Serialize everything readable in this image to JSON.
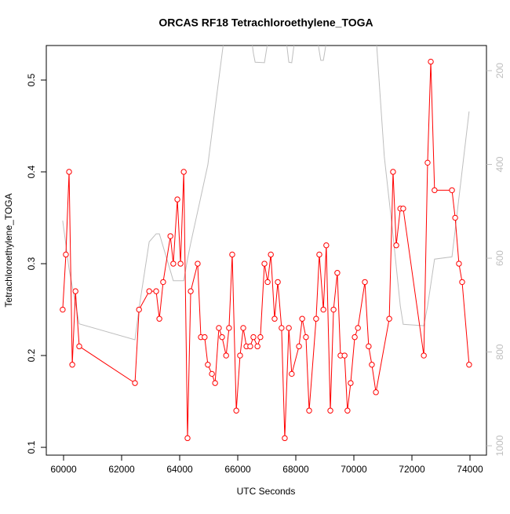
{
  "chart_data": {
    "type": "line",
    "title": "ORCAS RF18 Tetrachloroethylene_TOGA",
    "x_label": "UTC Seconds",
    "y_label": "Tetrachloroethylene_TOGA",
    "xlim": [
      59405,
      74568
    ],
    "xticks": [
      60000,
      62000,
      64000,
      66000,
      68000,
      70000,
      72000,
      74000
    ],
    "ylim": [
      0.0915,
      0.5376
    ],
    "yticks": [
      0.1,
      0.2,
      0.3,
      0.4,
      0.5
    ],
    "y2lim": [
      1020,
      146.4
    ],
    "y2ticks": [
      200,
      400,
      600,
      800,
      1000
    ],
    "series": [
      {
        "color": "#ff0000",
        "markers": true,
        "x": [
          59970,
          60080,
          60190,
          60300,
          60410,
          60540,
          62460,
          62600,
          62950,
          63190,
          63300,
          63430,
          63680,
          63780,
          63920,
          64030,
          64140,
          64270,
          64380,
          64620,
          64730,
          64860,
          64970,
          65110,
          65220,
          65350,
          65460,
          65600,
          65700,
          65810,
          65950,
          66080,
          66190,
          66300,
          66430,
          66540,
          66680,
          66780,
          66920,
          67030,
          67140,
          67270,
          67380,
          67510,
          67620,
          67760,
          67860,
          68110,
          68220,
          68350,
          68460,
          68700,
          68810,
          68950,
          69050,
          69190,
          69300,
          69430,
          69540,
          69680,
          69780,
          69890,
          70030,
          70140,
          70380,
          70510,
          70620,
          70760,
          71220,
          71350,
          71460,
          71600,
          71700,
          72410,
          72540,
          72650,
          72780,
          73380,
          73490,
          73620,
          73730,
          73970
        ],
        "values": [
          0.25,
          0.31,
          0.4,
          0.19,
          0.27,
          0.21,
          0.17,
          0.25,
          0.27,
          0.27,
          0.24,
          0.28,
          0.33,
          0.3,
          0.37,
          0.3,
          0.4,
          0.11,
          0.27,
          0.3,
          0.22,
          0.22,
          0.19,
          0.18,
          0.17,
          0.23,
          0.22,
          0.2,
          0.23,
          0.31,
          0.14,
          0.2,
          0.23,
          0.21,
          0.21,
          0.22,
          0.21,
          0.22,
          0.3,
          0.28,
          0.31,
          0.24,
          0.28,
          0.23,
          0.11,
          0.23,
          0.18,
          0.21,
          0.24,
          0.22,
          0.14,
          0.24,
          0.31,
          0.25,
          0.32,
          0.14,
          0.25,
          0.29,
          0.2,
          0.2,
          0.14,
          0.17,
          0.22,
          0.23,
          0.28,
          0.21,
          0.19,
          0.16,
          0.24,
          0.4,
          0.32,
          0.36,
          0.36,
          0.2,
          0.41,
          0.52,
          0.38,
          0.38,
          0.35,
          0.3,
          0.28,
          0.19
        ]
      },
      {
        "color": "#bebebe",
        "axis": "y2",
        "markers": false,
        "x": [
          59970,
          60190,
          60540,
          62460,
          62600,
          62950,
          63190,
          63300,
          63680,
          63780,
          64030,
          64140,
          64270,
          64380,
          64970,
          65510,
          66490,
          66540,
          66600,
          66920,
          67030,
          67680,
          67760,
          67860,
          67950,
          68760,
          68860,
          68950,
          69050,
          70780,
          71050,
          71350,
          71600,
          71700,
          72410,
          72540,
          72780,
          73380,
          73970
        ],
        "values": [
          520,
          623,
          740,
          774,
          707,
          565,
          548,
          548,
          627,
          648,
          648,
          648,
          602,
          568,
          401,
          140,
          140,
          163,
          182,
          183,
          140,
          140,
          182,
          183,
          140,
          140,
          178,
          178,
          140,
          140,
          384,
          551,
          702,
          741,
          744,
          702,
          602,
          597,
          287
        ]
      }
    ]
  }
}
